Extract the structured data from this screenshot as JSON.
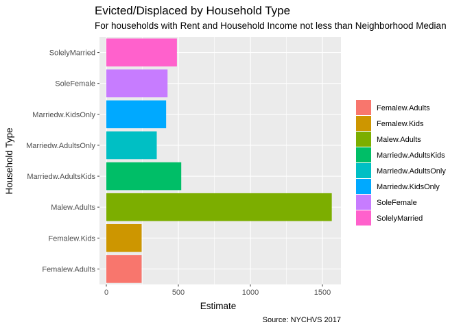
{
  "chart_data": {
    "type": "bar",
    "orientation": "horizontal",
    "title": "Evicted/Displaced by Household Type",
    "subtitle": "For households with Rent and Household Income not less than Neighborhood Median",
    "xlabel": "Estimate",
    "ylabel": "Household Type",
    "caption": "Source: NYCHVS 2017",
    "xlim": [
      0,
      1640
    ],
    "x_ticks": [
      0,
      500,
      1000,
      1500
    ],
    "x_tick_labels": [
      "0",
      "500",
      "1000",
      "1500"
    ],
    "grid": true,
    "legend_position": "right",
    "categories": [
      "Femalew.Adults",
      "Femalew.Kids",
      "Malew.Adults",
      "Marriedw.AdultsKids",
      "Marriedw.AdultsOnly",
      "Marriedw.KidsOnly",
      "SoleFemale",
      "SolelyMarried"
    ],
    "values": [
      245,
      245,
      1565,
      520,
      350,
      415,
      425,
      490
    ],
    "colors": [
      "#F8766D",
      "#CD9600",
      "#7CAE00",
      "#00BE67",
      "#00BFC4",
      "#00A9FF",
      "#C77CFF",
      "#FF61CC"
    ],
    "legend": [
      "Femalew.Adults",
      "Femalew.Kids",
      "Malew.Adults",
      "Marriedw.AdultsKids",
      "Marriedw.AdultsOnly",
      "Marriedw.KidsOnly",
      "SoleFemale",
      "SolelyMarried"
    ]
  }
}
